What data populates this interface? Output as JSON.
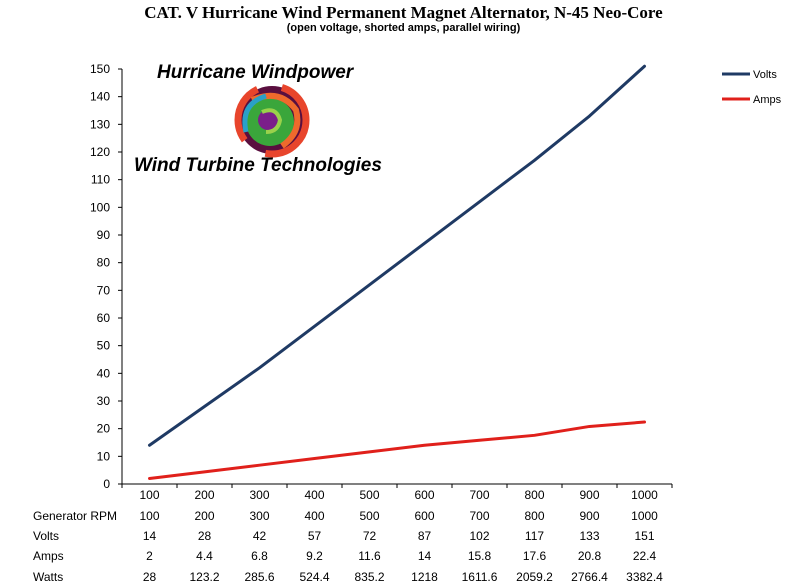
{
  "title": "CAT. V Hurricane Wind Permanent Magnet Alternator, N-45 Neo-Core",
  "subtitle": "(open voltage, shorted amps, parallel wiring)",
  "logo": {
    "top_text": "Hurricane Windpower",
    "bottom_text": "Wind Turbine Technologies"
  },
  "colors": {
    "volts": "#1F3A64",
    "amps": "#E0201B",
    "axis": "#000000"
  },
  "chart_data": {
    "type": "line",
    "categories": [
      "100",
      "200",
      "300",
      "400",
      "500",
      "600",
      "700",
      "800",
      "900",
      "1000"
    ],
    "series": [
      {
        "name": "Volts",
        "values": [
          14,
          28,
          42,
          57,
          72,
          87,
          102,
          117,
          133,
          151
        ]
      },
      {
        "name": "Amps",
        "values": [
          2,
          4.4,
          6.8,
          9.2,
          11.6,
          14,
          15.8,
          17.6,
          20.8,
          22.4
        ]
      }
    ],
    "ylim": [
      0,
      150
    ],
    "yticks": [
      0,
      10,
      20,
      30,
      40,
      50,
      60,
      70,
      80,
      90,
      100,
      110,
      120,
      130,
      140,
      150
    ],
    "legend": "right",
    "grid": false
  },
  "table": {
    "rows": [
      {
        "label": "Generator RPM",
        "values": [
          "100",
          "200",
          "300",
          "400",
          "500",
          "600",
          "700",
          "800",
          "900",
          "1000"
        ]
      },
      {
        "label": "Volts",
        "values": [
          "14",
          "28",
          "42",
          "57",
          "72",
          "87",
          "102",
          "117",
          "133",
          "151"
        ]
      },
      {
        "label": "Amps",
        "values": [
          "2",
          "4.4",
          "6.8",
          "9.2",
          "11.6",
          "14",
          "15.8",
          "17.6",
          "20.8",
          "22.4"
        ]
      },
      {
        "label": "Watts",
        "values": [
          "28",
          "123.2",
          "285.6",
          "524.4",
          "835.2",
          "1218",
          "1611.6",
          "2059.2",
          "2766.4",
          "3382.4"
        ]
      }
    ]
  }
}
